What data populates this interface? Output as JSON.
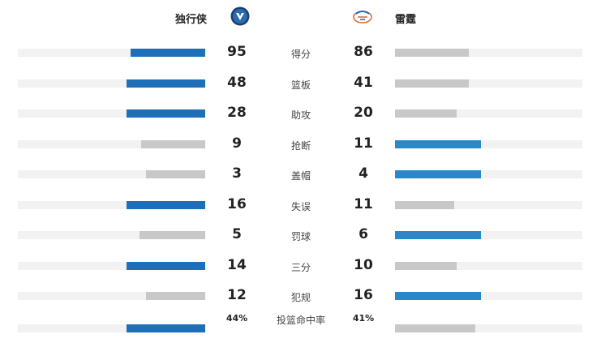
{
  "teams": {
    "left": {
      "name": "独行侠",
      "logo": "mavericks-logo-icon",
      "color": "#1f6eb8"
    },
    "right": {
      "name": "雷霆",
      "logo": "thunder-logo-icon",
      "color": "#2b88c8"
    }
  },
  "colors": {
    "left_win": "#1f6eb8",
    "right_win": "#2b88c8",
    "lose": "#c8c8c8",
    "track": "#f2f2f2"
  },
  "stats": [
    {
      "label": "得分",
      "left": "95",
      "right": "86",
      "lv": 95,
      "rv": 86,
      "max": 100
    },
    {
      "label": "篮板",
      "left": "48",
      "right": "41",
      "lv": 48,
      "rv": 41,
      "max": 48
    },
    {
      "label": "助攻",
      "left": "28",
      "right": "20",
      "lv": 28,
      "rv": 20,
      "max": 28
    },
    {
      "label": "抢断",
      "left": "9",
      "right": "11",
      "lv": 9,
      "rv": 11,
      "max": 11
    },
    {
      "label": "盖帽",
      "left": "3",
      "right": "4",
      "lv": 3,
      "rv": 4,
      "max": 4
    },
    {
      "label": "失误",
      "left": "16",
      "right": "11",
      "lv": 16,
      "rv": 11,
      "max": 16
    },
    {
      "label": "罚球",
      "left": "5",
      "right": "6",
      "lv": 5,
      "rv": 6,
      "max": 6
    },
    {
      "label": "三分",
      "left": "14",
      "right": "10",
      "lv": 14,
      "rv": 10,
      "max": 14
    },
    {
      "label": "犯规",
      "left": "12",
      "right": "16",
      "lv": 12,
      "rv": 16,
      "max": 16
    },
    {
      "label": "投篮命中率",
      "left": "44%",
      "right": "41%",
      "lv": 44,
      "rv": 41,
      "max": 44
    }
  ]
}
